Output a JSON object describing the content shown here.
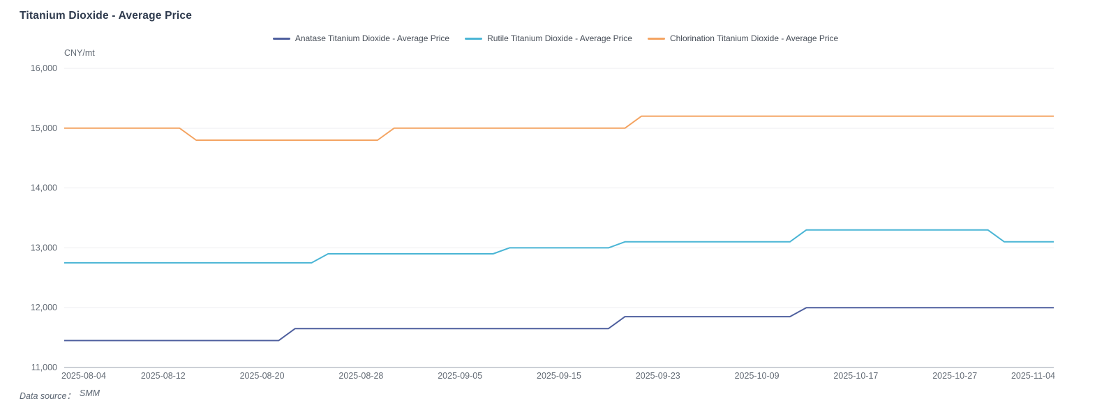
{
  "page": {
    "title": "Titanium Dioxide - Average Price"
  },
  "footer": {
    "label": "Data source：",
    "value": "SMM"
  },
  "colors": {
    "title": "#2e3a4d",
    "axis_text": "#636b75",
    "grid_line": "#ededf0",
    "axis_line": "#99a1ac",
    "legend_text": "#474e58",
    "footer_text": "#5c6673",
    "background": "#ffffff",
    "anatase": "#4e5f9e",
    "rutile": "#4ab5d5",
    "chlorination": "#f4a462"
  },
  "chart_data": {
    "type": "line",
    "title": "Titanium Dioxide - Average Price",
    "ylabel_unit": "CNY/mt",
    "ylim": [
      11000,
      16000
    ],
    "y_tick_step": 1000,
    "y_tick_labels": [
      "11,000",
      "12,000",
      "13,000",
      "14,000",
      "15,000",
      "16,000"
    ],
    "x_tick_labels": [
      "2025-08-04",
      "2025-08-12",
      "2025-08-20",
      "2025-08-28",
      "2025-09-05",
      "2025-09-15",
      "2025-09-23",
      "2025-10-09",
      "2025-10-17",
      "2025-10-27",
      "2025-11-04"
    ],
    "x_tick_indices": [
      0,
      6,
      12,
      18,
      24,
      30,
      36,
      42,
      48,
      54,
      60
    ],
    "grid": true,
    "legend_position": "top",
    "x": [
      "2025-08-04",
      "2025-08-05",
      "2025-08-06",
      "2025-08-07",
      "2025-08-08",
      "2025-08-11",
      "2025-08-12",
      "2025-08-13",
      "2025-08-14",
      "2025-08-15",
      "2025-08-18",
      "2025-08-19",
      "2025-08-20",
      "2025-08-21",
      "2025-08-22",
      "2025-08-25",
      "2025-08-26",
      "2025-08-27",
      "2025-08-28",
      "2025-08-29",
      "2025-09-01",
      "2025-09-02",
      "2025-09-03",
      "2025-09-04",
      "2025-09-05",
      "2025-09-08",
      "2025-09-09",
      "2025-09-10",
      "2025-09-11",
      "2025-09-12",
      "2025-09-15",
      "2025-09-16",
      "2025-09-17",
      "2025-09-18",
      "2025-09-19",
      "2025-09-22",
      "2025-09-23",
      "2025-09-24",
      "2025-09-25",
      "2025-09-26",
      "2025-09-29",
      "2025-09-30",
      "2025-10-09",
      "2025-10-10",
      "2025-10-13",
      "2025-10-14",
      "2025-10-15",
      "2025-10-16",
      "2025-10-17",
      "2025-10-20",
      "2025-10-21",
      "2025-10-22",
      "2025-10-23",
      "2025-10-24",
      "2025-10-27",
      "2025-10-28",
      "2025-10-29",
      "2025-10-30",
      "2025-10-31",
      "2025-11-03",
      "2025-11-04"
    ],
    "series": [
      {
        "name": "Anatase Titanium Dioxide - Average Price",
        "color": "#4e5f9e",
        "values": [
          11450,
          11450,
          11450,
          11450,
          11450,
          11450,
          11450,
          11450,
          11450,
          11450,
          11450,
          11450,
          11450,
          11450,
          11650,
          11650,
          11650,
          11650,
          11650,
          11650,
          11650,
          11650,
          11650,
          11650,
          11650,
          11650,
          11650,
          11650,
          11650,
          11650,
          11650,
          11650,
          11650,
          11650,
          11850,
          11850,
          11850,
          11850,
          11850,
          11850,
          11850,
          11850,
          11850,
          11850,
          11850,
          12000,
          12000,
          12000,
          12000,
          12000,
          12000,
          12000,
          12000,
          12000,
          12000,
          12000,
          12000,
          12000,
          12000,
          12000,
          12000
        ]
      },
      {
        "name": "Rutile Titanium Dioxide - Average Price",
        "color": "#4ab5d5",
        "values": [
          12750,
          12750,
          12750,
          12750,
          12750,
          12750,
          12750,
          12750,
          12750,
          12750,
          12750,
          12750,
          12750,
          12750,
          12750,
          12750,
          12900,
          12900,
          12900,
          12900,
          12900,
          12900,
          12900,
          12900,
          12900,
          12900,
          12900,
          13000,
          13000,
          13000,
          13000,
          13000,
          13000,
          13000,
          13100,
          13100,
          13100,
          13100,
          13100,
          13100,
          13100,
          13100,
          13100,
          13100,
          13100,
          13300,
          13300,
          13300,
          13300,
          13300,
          13300,
          13300,
          13300,
          13300,
          13300,
          13300,
          13300,
          13100,
          13100,
          13100,
          13100
        ]
      },
      {
        "name": "Chlorination Titanium Dioxide - Average Price",
        "color": "#f4a462",
        "values": [
          15000,
          15000,
          15000,
          15000,
          15000,
          15000,
          15000,
          15000,
          14800,
          14800,
          14800,
          14800,
          14800,
          14800,
          14800,
          14800,
          14800,
          14800,
          14800,
          14800,
          15000,
          15000,
          15000,
          15000,
          15000,
          15000,
          15000,
          15000,
          15000,
          15000,
          15000,
          15000,
          15000,
          15000,
          15000,
          15200,
          15200,
          15200,
          15200,
          15200,
          15200,
          15200,
          15200,
          15200,
          15200,
          15200,
          15200,
          15200,
          15200,
          15200,
          15200,
          15200,
          15200,
          15200,
          15200,
          15200,
          15200,
          15200,
          15200,
          15200,
          15200
        ]
      }
    ]
  }
}
